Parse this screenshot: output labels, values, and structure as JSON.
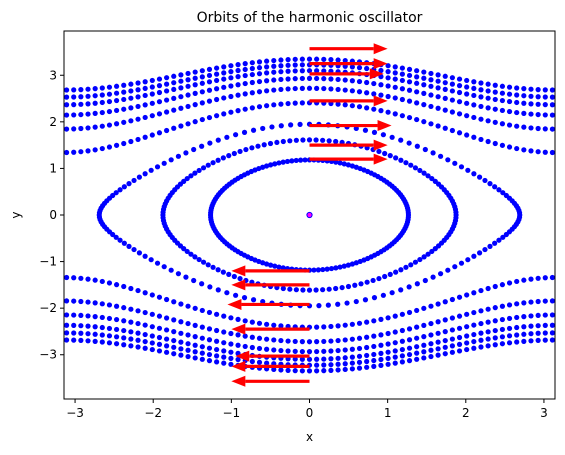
{
  "chart_data": {
    "type": "scatter",
    "title": "Orbits of the harmonic oscillator",
    "xlabel": "x",
    "ylabel": "y",
    "xlim": [
      -3.14159,
      3.14159
    ],
    "ylim": [
      -3.95,
      3.95
    ],
    "xticks": [
      -3,
      -2,
      -1,
      0,
      1,
      2,
      3
    ],
    "yticks": [
      -3,
      -2,
      -1,
      0,
      1,
      2,
      3
    ],
    "grid": false,
    "legend": "none",
    "orbit_energies": [
      0.0,
      0.7,
      1.3,
      1.9,
      2.9,
      3.7,
      4.3,
      4.8,
      5.2,
      5.6
    ],
    "arrows": [
      {
        "x0": 0,
        "y0": 3.57,
        "x1": 1.0,
        "y1": 3.57
      },
      {
        "x0": 0,
        "y0": 3.25,
        "x1": 1.0,
        "y1": 3.25
      },
      {
        "x0": 0,
        "y0": 3.03,
        "x1": 0.95,
        "y1": 3.03
      },
      {
        "x0": 0,
        "y0": 2.45,
        "x1": 1.0,
        "y1": 2.45
      },
      {
        "x0": 0,
        "y0": 1.92,
        "x1": 1.05,
        "y1": 1.92
      },
      {
        "x0": 0,
        "y0": 1.5,
        "x1": 1.0,
        "y1": 1.5
      },
      {
        "x0": 0,
        "y0": 1.2,
        "x1": 1.0,
        "y1": 1.2
      },
      {
        "x0": 0,
        "y0": -1.2,
        "x1": -1.0,
        "y1": -1.2
      },
      {
        "x0": 0,
        "y0": -1.5,
        "x1": -1.0,
        "y1": -1.5
      },
      {
        "x0": 0,
        "y0": -1.92,
        "x1": -1.05,
        "y1": -1.92
      },
      {
        "x0": 0,
        "y0": -2.45,
        "x1": -1.0,
        "y1": -2.45
      },
      {
        "x0": 0,
        "y0": -3.03,
        "x1": -0.95,
        "y1": -3.03
      },
      {
        "x0": 0,
        "y0": -3.25,
        "x1": -1.0,
        "y1": -3.25
      },
      {
        "x0": 0,
        "y0": -3.57,
        "x1": -1.0,
        "y1": -3.57
      }
    ],
    "colors": {
      "points": "#0000ff",
      "arrows": "#ff0000",
      "center": "#ff00ff"
    }
  }
}
